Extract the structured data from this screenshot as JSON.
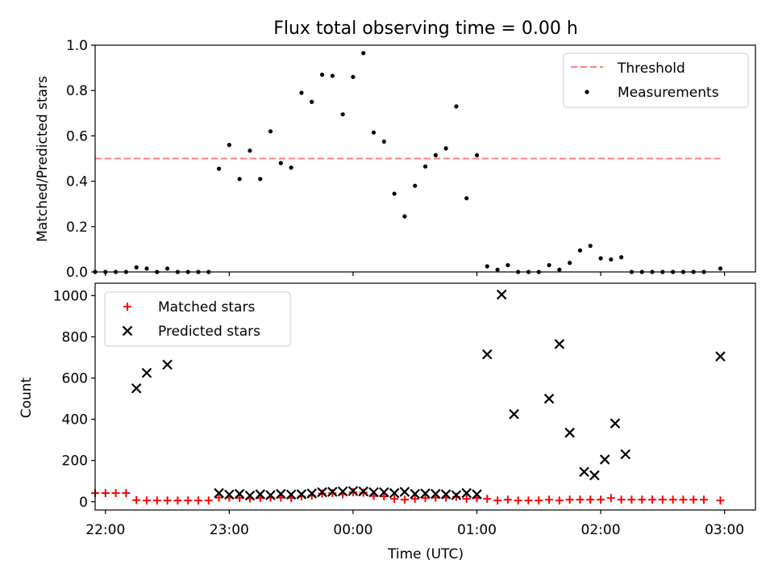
{
  "chart_data": [
    {
      "type": "scatter",
      "title": "Flux total observing time = 0.00 h",
      "xlabel": "",
      "ylabel": "Matched/Predicted stars",
      "xlim": [
        "21:55",
        "03:15"
      ],
      "ylim": [
        0,
        1.0
      ],
      "yticks": [
        0.0,
        0.2,
        0.4,
        0.6,
        0.8,
        1.0
      ],
      "ytick_labels": [
        "0.0",
        "0.2",
        "0.4",
        "0.6",
        "0.8",
        "1.0"
      ],
      "legend": {
        "placement": "top-right",
        "entries": [
          "Threshold",
          "Measurements"
        ]
      },
      "threshold": {
        "name": "Threshold",
        "value": 0.5,
        "x_start": "21:55",
        "x_end": "02:58",
        "color": "#ff7f7f"
      },
      "series": [
        {
          "name": "Measurements",
          "color": "#000000",
          "points": [
            [
              "21:55",
              0.0
            ],
            [
              "22:00",
              0.0
            ],
            [
              "22:05",
              0.0
            ],
            [
              "22:10",
              0.0
            ],
            [
              "22:15",
              0.02
            ],
            [
              "22:20",
              0.015
            ],
            [
              "22:25",
              0.0
            ],
            [
              "22:30",
              0.015
            ],
            [
              "22:35",
              0.0
            ],
            [
              "22:40",
              0.0
            ],
            [
              "22:45",
              0.0
            ],
            [
              "22:50",
              0.0
            ],
            [
              "22:55",
              0.455
            ],
            [
              "23:00",
              0.56
            ],
            [
              "23:05",
              0.41
            ],
            [
              "23:10",
              0.535
            ],
            [
              "23:15",
              0.41
            ],
            [
              "23:20",
              0.62
            ],
            [
              "23:25",
              0.48
            ],
            [
              "23:30",
              0.46
            ],
            [
              "23:35",
              0.79
            ],
            [
              "23:40",
              0.75
            ],
            [
              "23:45",
              0.87
            ],
            [
              "23:50",
              0.865
            ],
            [
              "23:55",
              0.695
            ],
            [
              "00:00",
              0.86
            ],
            [
              "00:05",
              0.965
            ],
            [
              "00:10",
              0.615
            ],
            [
              "00:15",
              0.575
            ],
            [
              "00:20",
              0.345
            ],
            [
              "00:25",
              0.245
            ],
            [
              "00:30",
              0.38
            ],
            [
              "00:35",
              0.465
            ],
            [
              "00:40",
              0.515
            ],
            [
              "00:45",
              0.545
            ],
            [
              "00:50",
              0.73
            ],
            [
              "00:55",
              0.325
            ],
            [
              "01:00",
              0.515
            ],
            [
              "01:05",
              0.025
            ],
            [
              "01:10",
              0.01
            ],
            [
              "01:15",
              0.03
            ],
            [
              "01:20",
              0.0
            ],
            [
              "01:25",
              0.0
            ],
            [
              "01:30",
              0.0
            ],
            [
              "01:35",
              0.03
            ],
            [
              "01:40",
              0.01
            ],
            [
              "01:45",
              0.04
            ],
            [
              "01:50",
              0.095
            ],
            [
              "01:55",
              0.115
            ],
            [
              "02:00",
              0.06
            ],
            [
              "02:05",
              0.055
            ],
            [
              "02:10",
              0.065
            ],
            [
              "02:15",
              0.0
            ],
            [
              "02:20",
              0.0
            ],
            [
              "02:25",
              0.0
            ],
            [
              "02:30",
              0.0
            ],
            [
              "02:35",
              0.0
            ],
            [
              "02:40",
              0.0
            ],
            [
              "02:45",
              0.0
            ],
            [
              "02:50",
              0.0
            ],
            [
              "02:58",
              0.015
            ]
          ]
        }
      ]
    },
    {
      "type": "scatter",
      "title": "",
      "xlabel": "Time (UTC)",
      "ylabel": "Count",
      "xlim": [
        "21:55",
        "03:15"
      ],
      "ylim": [
        -40,
        1060
      ],
      "yticks": [
        0,
        200,
        400,
        600,
        800,
        1000
      ],
      "ytick_labels": [
        "0",
        "200",
        "400",
        "600",
        "800",
        "1000"
      ],
      "xticks": [
        "22:00",
        "23:00",
        "00:00",
        "01:00",
        "02:00",
        "03:00"
      ],
      "xtick_labels": [
        "22:00",
        "23:00",
        "00:00",
        "01:00",
        "02:00",
        "03:00"
      ],
      "legend": {
        "placement": "top-left",
        "entries": [
          "Matched stars",
          "Predicted stars"
        ]
      },
      "series": [
        {
          "name": "Matched stars",
          "marker": "plus",
          "color": "#ff0000",
          "points": [
            [
              "21:55",
              42
            ],
            [
              "22:00",
              42
            ],
            [
              "22:05",
              42
            ],
            [
              "22:10",
              42
            ],
            [
              "22:15",
              8
            ],
            [
              "22:20",
              6
            ],
            [
              "22:25",
              6
            ],
            [
              "22:30",
              6
            ],
            [
              "22:35",
              6
            ],
            [
              "22:40",
              6
            ],
            [
              "22:45",
              6
            ],
            [
              "22:50",
              6
            ],
            [
              "22:55",
              20
            ],
            [
              "23:00",
              20
            ],
            [
              "23:05",
              18
            ],
            [
              "23:10",
              16
            ],
            [
              "23:15",
              18
            ],
            [
              "23:20",
              20
            ],
            [
              "23:25",
              20
            ],
            [
              "23:30",
              18
            ],
            [
              "23:35",
              26
            ],
            [
              "23:40",
              30
            ],
            [
              "23:45",
              40
            ],
            [
              "23:50",
              42
            ],
            [
              "23:55",
              36
            ],
            [
              "00:00",
              46
            ],
            [
              "00:05",
              44
            ],
            [
              "00:10",
              28
            ],
            [
              "00:15",
              26
            ],
            [
              "00:20",
              14
            ],
            [
              "00:25",
              10
            ],
            [
              "00:30",
              14
            ],
            [
              "00:35",
              18
            ],
            [
              "00:40",
              20
            ],
            [
              "00:45",
              20
            ],
            [
              "00:50",
              24
            ],
            [
              "00:55",
              14
            ],
            [
              "01:00",
              18
            ],
            [
              "01:05",
              14
            ],
            [
              "01:10",
              6
            ],
            [
              "01:15",
              10
            ],
            [
              "01:20",
              6
            ],
            [
              "01:25",
              6
            ],
            [
              "01:30",
              6
            ],
            [
              "01:35",
              10
            ],
            [
              "01:40",
              6
            ],
            [
              "01:45",
              10
            ],
            [
              "01:50",
              10
            ],
            [
              "01:55",
              10
            ],
            [
              "02:00",
              10
            ],
            [
              "02:05",
              18
            ],
            [
              "02:10",
              10
            ],
            [
              "02:15",
              10
            ],
            [
              "02:20",
              10
            ],
            [
              "02:25",
              10
            ],
            [
              "02:30",
              10
            ],
            [
              "02:35",
              10
            ],
            [
              "02:40",
              10
            ],
            [
              "02:45",
              10
            ],
            [
              "02:50",
              10
            ],
            [
              "02:58",
              6
            ]
          ]
        },
        {
          "name": "Predicted stars",
          "marker": "x",
          "color": "#000000",
          "points": [
            [
              "22:15",
              550
            ],
            [
              "22:20",
              625
            ],
            [
              "22:30",
              665
            ],
            [
              "22:55",
              42
            ],
            [
              "23:00",
              35
            ],
            [
              "23:05",
              38
            ],
            [
              "23:10",
              30
            ],
            [
              "23:15",
              36
            ],
            [
              "23:20",
              32
            ],
            [
              "23:25",
              38
            ],
            [
              "23:30",
              35
            ],
            [
              "23:35",
              36
            ],
            [
              "23:40",
              40
            ],
            [
              "23:45",
              46
            ],
            [
              "23:50",
              48
            ],
            [
              "23:55",
              50
            ],
            [
              "00:00",
              52
            ],
            [
              "00:05",
              50
            ],
            [
              "00:10",
              46
            ],
            [
              "00:15",
              46
            ],
            [
              "00:20",
              42
            ],
            [
              "00:25",
              48
            ],
            [
              "00:30",
              38
            ],
            [
              "00:35",
              40
            ],
            [
              "00:40",
              38
            ],
            [
              "00:45",
              36
            ],
            [
              "00:50",
              32
            ],
            [
              "00:55",
              42
            ],
            [
              "01:00",
              36
            ],
            [
              "01:05",
              715
            ],
            [
              "01:12",
              1005
            ],
            [
              "01:18",
              425
            ],
            [
              "01:35",
              500
            ],
            [
              "01:40",
              765
            ],
            [
              "01:45",
              335
            ],
            [
              "01:52",
              145
            ],
            [
              "01:57",
              128
            ],
            [
              "02:02",
              205
            ],
            [
              "02:07",
              380
            ],
            [
              "02:12",
              230
            ],
            [
              "02:58",
              705
            ]
          ]
        }
      ]
    }
  ]
}
